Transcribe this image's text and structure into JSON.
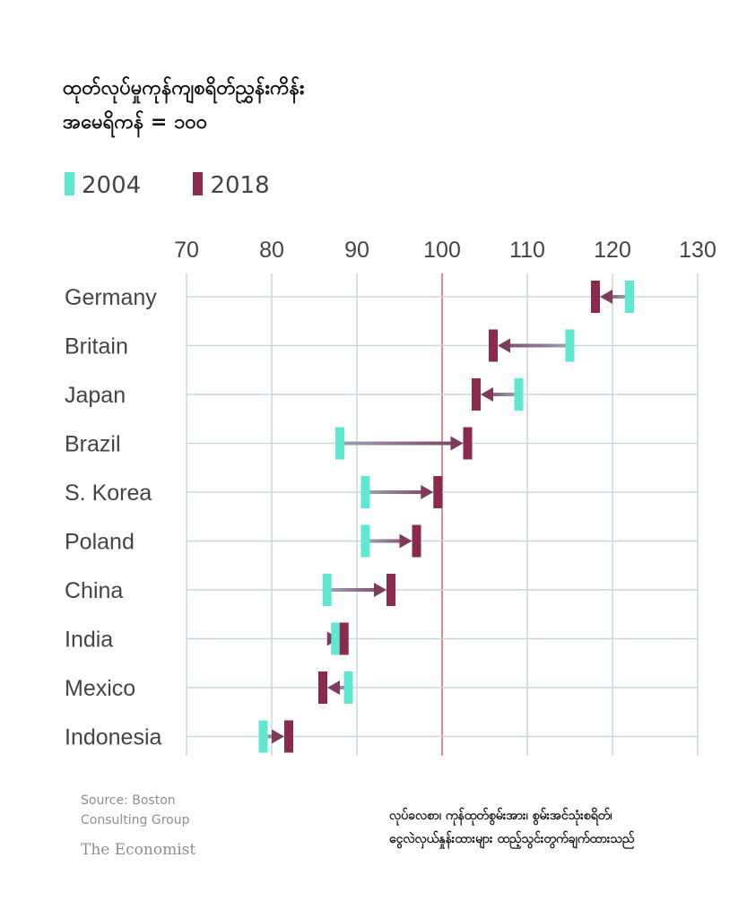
{
  "title_line1": "ထုတ်လုပ်မှုကုန်ကျစရိတ်ညွှန်းကိန်း",
  "title_line2": "အမေရိကန် = ၁၀၀",
  "source": [
    "Source: Boston",
    "Consulting Group"
  ],
  "brand": "The Economist",
  "note": [
    "လုပ်ခလစာ၊ ကုန်ထုတ်စွမ်းအား၊ စွမ်းအင်သုံးစရိတ်၊",
    "ငွေလဲလှယ်နှုန်းထားများ ထည့်သွင်းတွက်ချက်ထားသည်"
  ],
  "colors": {
    "y2004": "#5ee8d2",
    "y2018": "#8b2a4e",
    "grid": "#c5d7e0",
    "reference": "#e8848f",
    "axis_text": "#444444"
  },
  "chart_data": {
    "type": "dumbbell",
    "xlim": [
      70,
      130
    ],
    "xticks": [
      "70",
      "80",
      "90",
      "100",
      "110",
      "120",
      "130"
    ],
    "reference_line": 100,
    "legend_position": "top-left",
    "grid": true,
    "categories": [
      "Germany",
      "Britain",
      "Japan",
      "Brazil",
      "S. Korea",
      "Poland",
      "China",
      "India",
      "Mexico",
      "Indonesia"
    ],
    "series": [
      {
        "name": "2004",
        "values": [
          122,
          115,
          109,
          88,
          91,
          91,
          86.5,
          87.5,
          89,
          79
        ]
      },
      {
        "name": "2018",
        "values": [
          118,
          106,
          104,
          103,
          99.5,
          97,
          94,
          88.5,
          86,
          82
        ]
      }
    ]
  }
}
